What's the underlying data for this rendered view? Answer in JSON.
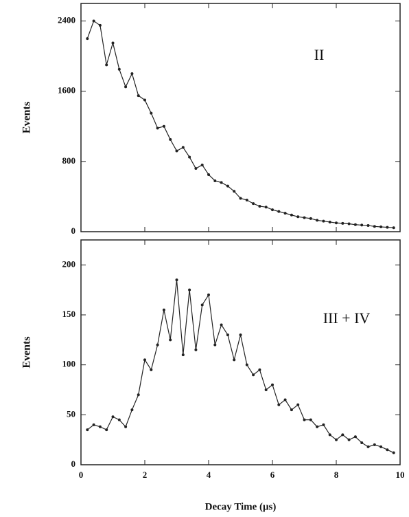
{
  "chart_data": [
    {
      "type": "line",
      "ylabel": "Events",
      "annotation": "II",
      "x": [
        0.2,
        0.4,
        0.6,
        0.8,
        1.0,
        1.2,
        1.4,
        1.6,
        1.8,
        2.0,
        2.2,
        2.4,
        2.6,
        2.8,
        3.0,
        3.2,
        3.4,
        3.6,
        3.8,
        4.0,
        4.2,
        4.4,
        4.6,
        4.8,
        5.0,
        5.2,
        5.4,
        5.6,
        5.8,
        6.0,
        6.2,
        6.4,
        6.6,
        6.8,
        7.0,
        7.2,
        7.4,
        7.6,
        7.8,
        8.0,
        8.2,
        8.4,
        8.6,
        8.8,
        9.0,
        9.2,
        9.4,
        9.6,
        9.8
      ],
      "series": [
        {
          "color": "#222222",
          "values": [
            2200,
            2400,
            2350,
            1900,
            2150,
            1850,
            1650,
            1800,
            1550,
            1500,
            1350,
            1180,
            1200,
            1050,
            920,
            960,
            850,
            720,
            760,
            650,
            580,
            560,
            520,
            460,
            380,
            360,
            320,
            290,
            280,
            250,
            230,
            210,
            190,
            170,
            160,
            150,
            130,
            120,
            110,
            100,
            95,
            90,
            80,
            75,
            70,
            60,
            55,
            50,
            45
          ]
        }
      ],
      "xlim": [
        0,
        10
      ],
      "xticks": [
        0,
        2,
        4,
        6,
        8,
        10
      ],
      "ylim": [
        0,
        2600
      ],
      "yticks": [
        0,
        800,
        1600,
        2400
      ]
    },
    {
      "type": "line",
      "ylabel": "Events",
      "xlabel": "Decay Time (μs)",
      "annotation": "III + IV",
      "x": [
        0.2,
        0.4,
        0.6,
        0.8,
        1.0,
        1.2,
        1.4,
        1.6,
        1.8,
        2.0,
        2.2,
        2.4,
        2.6,
        2.8,
        3.0,
        3.2,
        3.4,
        3.6,
        3.8,
        4.0,
        4.2,
        4.4,
        4.6,
        4.8,
        5.0,
        5.2,
        5.4,
        5.6,
        5.8,
        6.0,
        6.2,
        6.4,
        6.6,
        6.8,
        7.0,
        7.2,
        7.4,
        7.6,
        7.8,
        8.0,
        8.2,
        8.4,
        8.6,
        8.8,
        9.0,
        9.2,
        9.4,
        9.6,
        9.8
      ],
      "series": [
        {
          "color": "#222222",
          "values": [
            35,
            40,
            38,
            35,
            48,
            45,
            38,
            55,
            70,
            105,
            95,
            120,
            155,
            125,
            185,
            110,
            175,
            115,
            160,
            170,
            120,
            140,
            130,
            105,
            130,
            100,
            90,
            95,
            75,
            80,
            60,
            65,
            55,
            60,
            45,
            45,
            38,
            40,
            30,
            25,
            30,
            25,
            28,
            22,
            18,
            20,
            18,
            15,
            12
          ]
        }
      ],
      "xlim": [
        0,
        10
      ],
      "xticks": [
        0,
        2,
        4,
        6,
        8,
        10
      ],
      "ylim": [
        0,
        225
      ],
      "yticks": [
        0,
        50,
        100,
        150,
        200
      ]
    }
  ]
}
